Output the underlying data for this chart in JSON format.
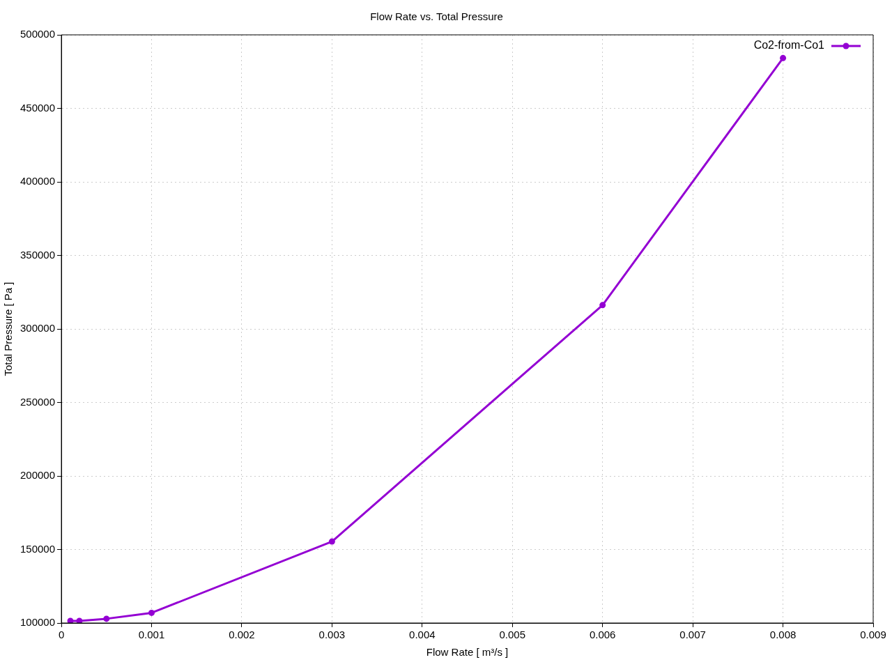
{
  "chart_data": {
    "type": "line",
    "title": "Flow Rate vs. Total Pressure",
    "xlabel": "Flow Rate [ m³/s ]",
    "ylabel": "Total Pressure [ Pa ]",
    "x": [
      0.0001,
      0.0002,
      0.0005,
      0.001,
      0.003,
      0.006,
      0.008
    ],
    "series": [
      {
        "name": "Co2-from-Co1",
        "color": "#9400d3",
        "values": [
          101400,
          101400,
          102900,
          106900,
          155400,
          316200,
          484200
        ]
      }
    ],
    "xlim": [
      0,
      0.009
    ],
    "xticks": [
      0,
      0.001,
      0.002,
      0.003,
      0.004,
      0.005,
      0.006,
      0.007,
      0.008,
      0.009
    ],
    "ylim": [
      100000,
      500000
    ],
    "yticks": [
      100000,
      150000,
      200000,
      250000,
      300000,
      350000,
      400000,
      450000,
      500000
    ],
    "grid": true,
    "legend": "top right",
    "marker": "circle",
    "line_style": "solid"
  }
}
